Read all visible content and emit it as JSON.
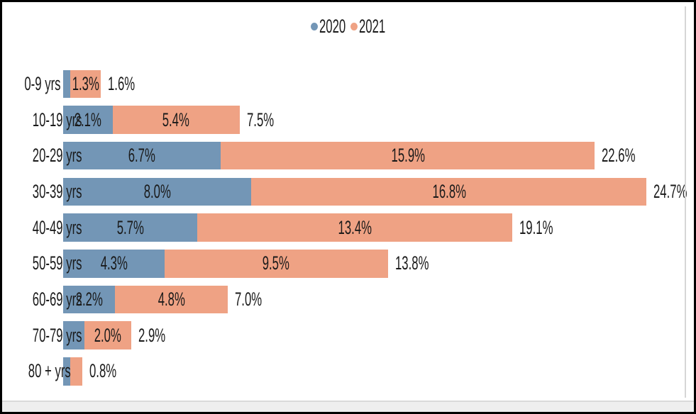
{
  "chart_data": {
    "type": "bar",
    "orientation": "horizontal",
    "stacked": true,
    "grid": false,
    "legend_position": "top",
    "value_unit": "%",
    "xlim": [
      0,
      24.7
    ],
    "categories": [
      "0-9 yrs",
      "10-19 yrs",
      "20-29 yrs",
      "30-39 yrs",
      "40-49 yrs",
      "50-59 yrs",
      "60-69 yrs",
      "70-79 yrs",
      "80 + yrs"
    ],
    "series": [
      {
        "name": "2020",
        "color": "#7396b6",
        "values": [
          0.3,
          2.1,
          6.7,
          8.0,
          5.7,
          4.3,
          2.2,
          0.9,
          0.3
        ],
        "labels": [
          "",
          "2.1%",
          "6.7%",
          "8.0%",
          "5.7%",
          "4.3%",
          "2.2%",
          "",
          ""
        ]
      },
      {
        "name": "2021",
        "color": "#efa284",
        "values": [
          1.3,
          5.4,
          15.9,
          16.8,
          13.4,
          9.5,
          4.8,
          2.0,
          0.5
        ],
        "labels": [
          "1.3%",
          "5.4%",
          "15.9%",
          "16.8%",
          "13.4%",
          "9.5%",
          "4.8%",
          "2.0%",
          ""
        ]
      }
    ],
    "totals": [
      1.6,
      7.5,
      22.6,
      24.7,
      19.1,
      13.8,
      7.0,
      2.9,
      0.8
    ],
    "total_labels": [
      "1.6%",
      "7.5%",
      "22.6%",
      "24.7%",
      "19.1%",
      "13.8%",
      "7.0%",
      "2.9%",
      "0.8%"
    ]
  },
  "colors": {
    "text": "#1a1a1a",
    "page_edge_line": "#d6d6d6",
    "bottom_strip": "#eeeeee",
    "frame_border": "#000000"
  }
}
